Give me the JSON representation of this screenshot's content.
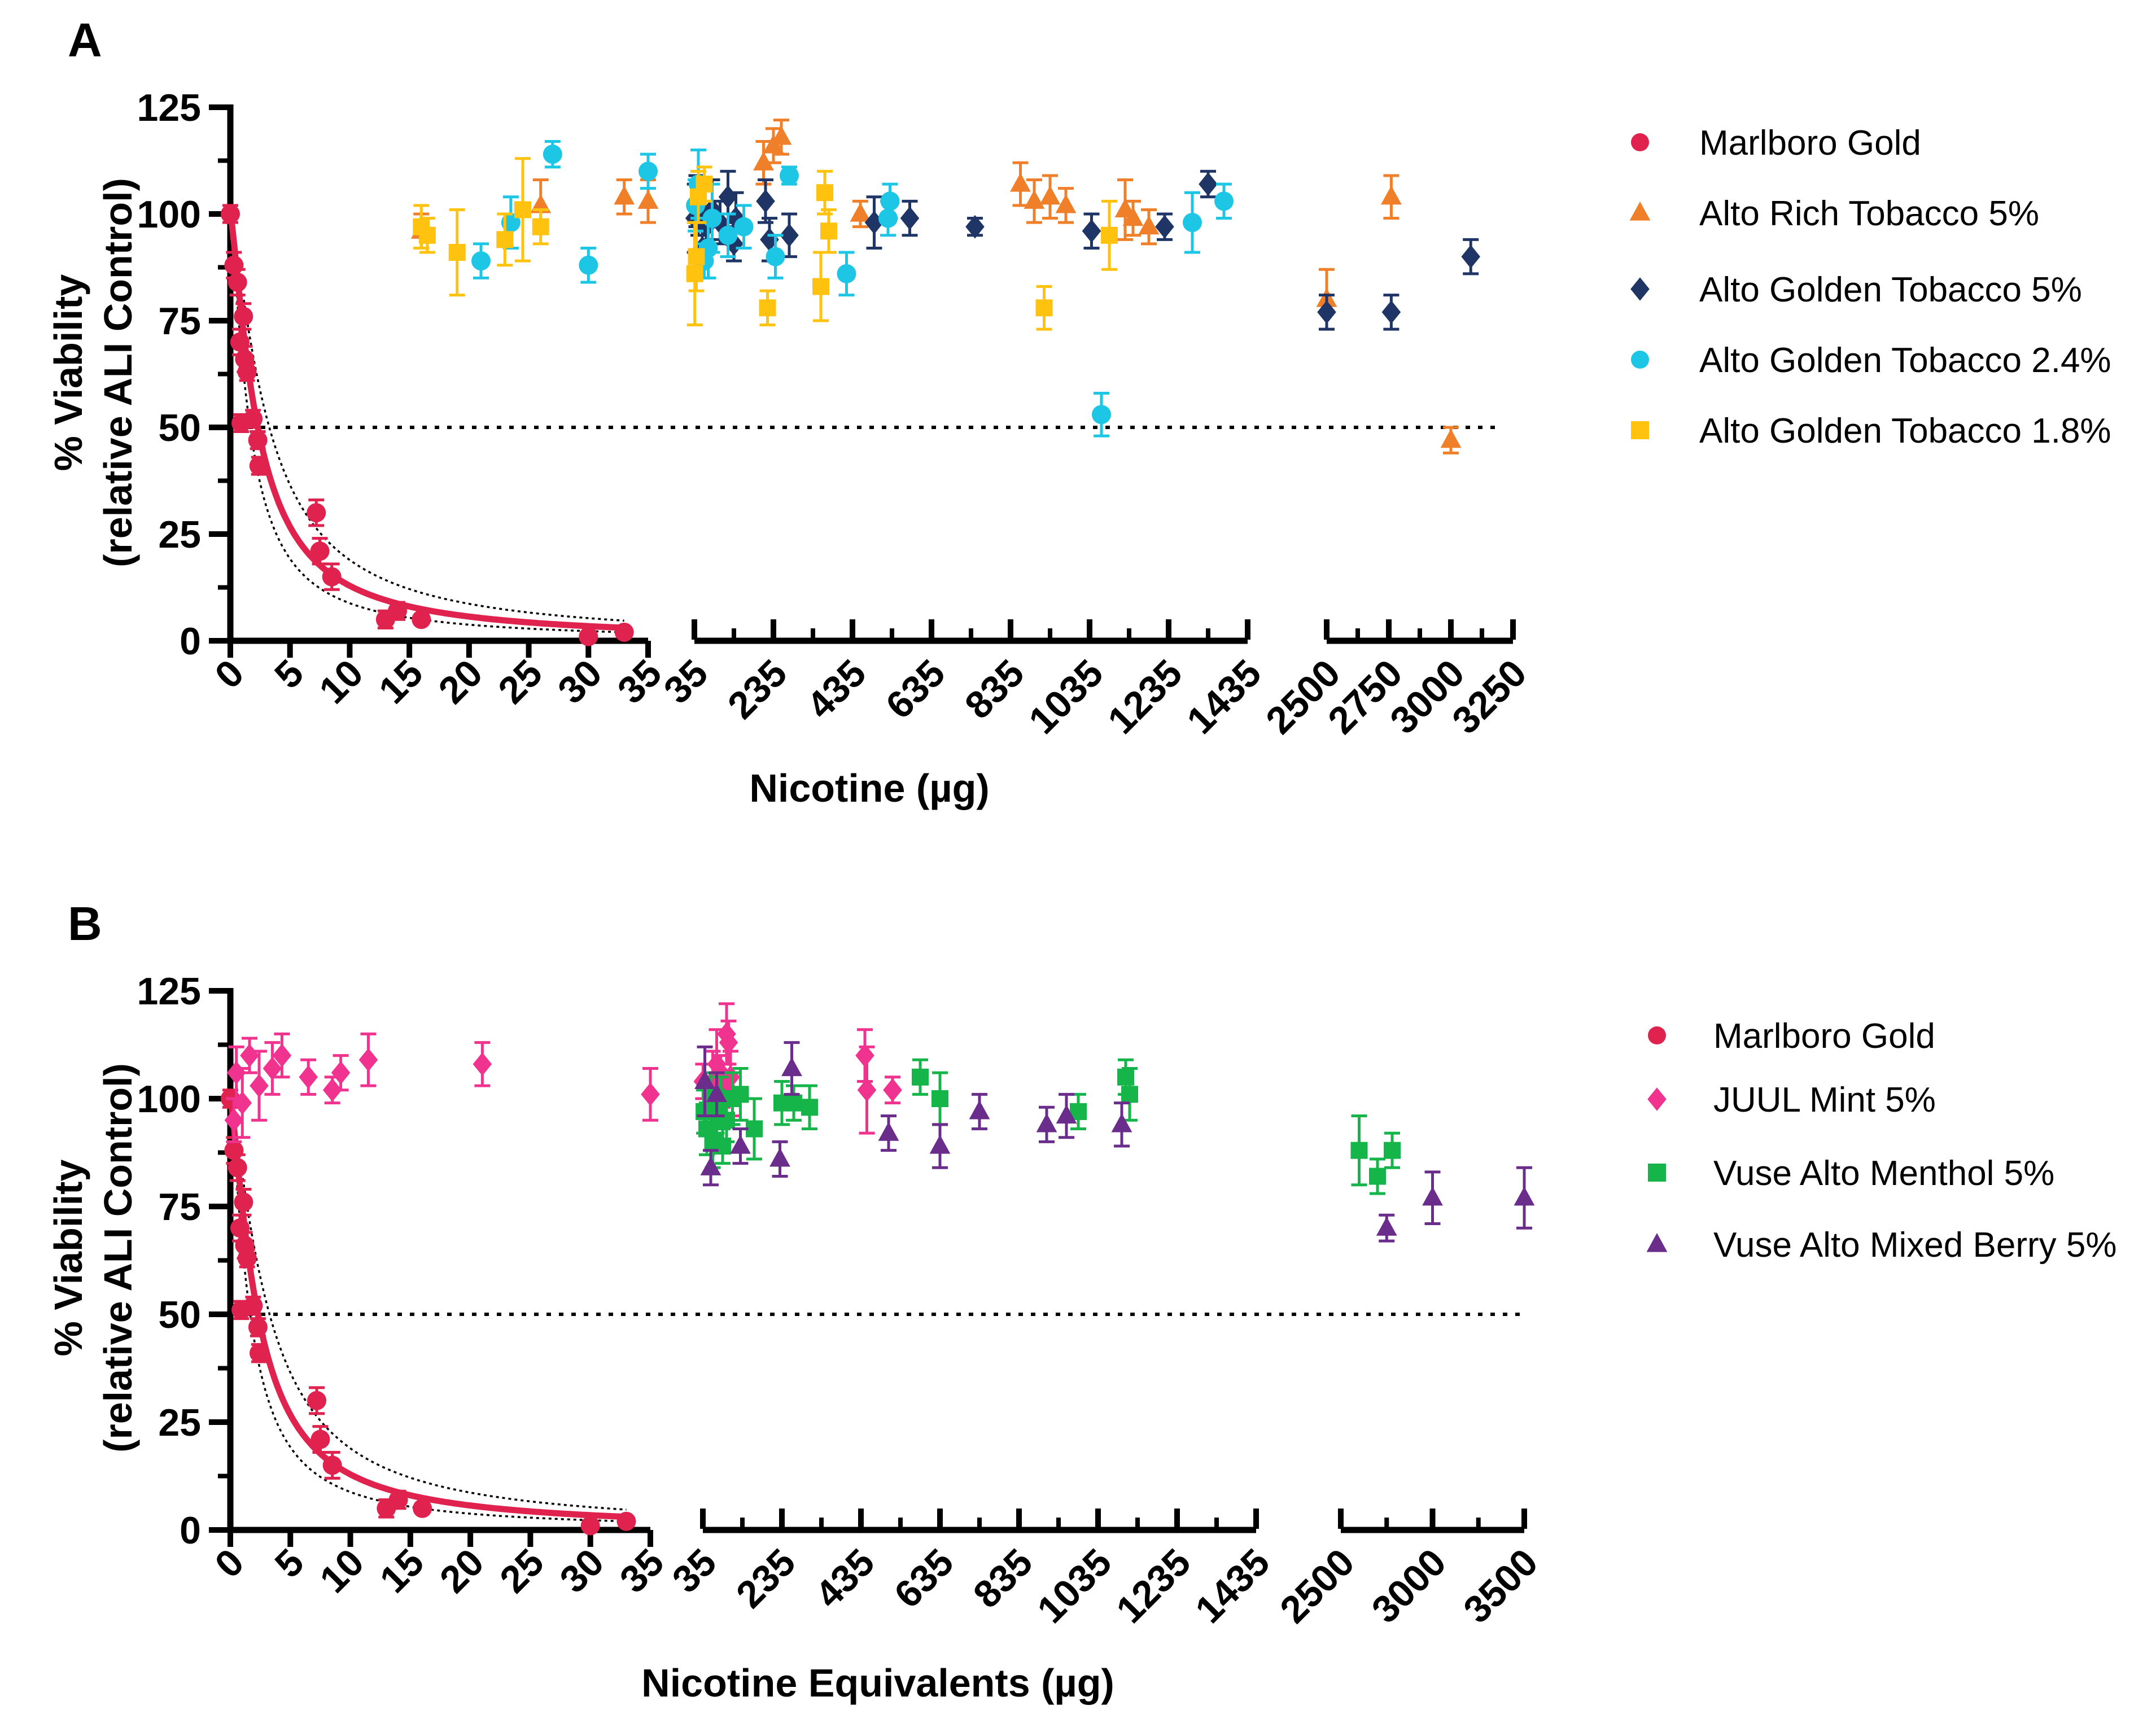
{
  "figure": {
    "panels": [
      {
        "letter": "A",
        "ylabel_line1": "% Viability",
        "ylabel_line2": "(relative ALI Control)",
        "xlabel": "Nicotine (µg)",
        "legend": [
          {
            "name": "Marlboro Gold",
            "marker": "circle",
            "color": "#e0234e"
          },
          {
            "name": "Alto Rich Tobacco 5%",
            "marker": "triangle",
            "color": "#f07f2a"
          },
          {
            "name": "Alto Golden Tobacco 5%",
            "marker": "diamond",
            "color": "#1f3566"
          },
          {
            "name": "Alto Golden Tobacco 2.4%",
            "marker": "circle",
            "color": "#1ec6e6"
          },
          {
            "name": "Alto Golden Tobacco 1.8%",
            "marker": "square",
            "color": "#ffc20e"
          }
        ]
      },
      {
        "letter": "B",
        "ylabel_line1": "% Viability",
        "ylabel_line2": "(relative ALI Control)",
        "xlabel": "Nicotine Equivalents (µg)",
        "legend": [
          {
            "name": "Marlboro Gold",
            "marker": "circle",
            "color": "#e0234e"
          },
          {
            "name": "JUUL Mint 5%",
            "marker": "diamond",
            "color": "#f0338f"
          },
          {
            "name": "Vuse Alto Menthol 5%",
            "marker": "square",
            "color": "#16b54a"
          },
          {
            "name": "Vuse Alto Mixed Berry 5%",
            "marker": "triangle",
            "color": "#6b2d8c"
          }
        ]
      }
    ]
  },
  "chart_data": [
    {
      "type": "scatter",
      "title": "A",
      "xlabel": "Nicotine (µg)",
      "ylabel": "% Viability (relative ALI Control)",
      "ylim": [
        0,
        125
      ],
      "yticks": [
        "0",
        "25",
        "50",
        "75",
        "100",
        "125"
      ],
      "reference_line_y": 50,
      "segments": [
        {
          "range": [
            0,
            35
          ],
          "ticks": [
            "0",
            "5",
            "10",
            "15",
            "20",
            "25",
            "30",
            "35"
          ]
        },
        {
          "range": [
            35,
            1435
          ],
          "ticks": [
            "35",
            "235",
            "435",
            "635",
            "835",
            "1035",
            "1235",
            "1435"
          ]
        },
        {
          "range": [
            2500,
            3250
          ],
          "ticks": [
            "2500",
            "2750",
            "3000",
            "3250"
          ]
        }
      ],
      "fit": {
        "series": "Marlboro Gold",
        "ic50": 2.3,
        "with_ci_band": true
      },
      "series": [
        {
          "name": "Marlboro Gold",
          "color": "#e0234e",
          "marker": "circle",
          "points": [
            [
              0,
              100,
              2
            ],
            [
              0.3,
              88,
              3
            ],
            [
              0.6,
              84,
              3
            ],
            [
              0.8,
              70,
              3
            ],
            [
              0.9,
              51,
              2
            ],
            [
              1.1,
              76,
              3
            ],
            [
              1.2,
              66,
              3
            ],
            [
              1.4,
              63,
              2
            ],
            [
              1.9,
              52,
              2
            ],
            [
              2.3,
              47,
              2
            ],
            [
              2.4,
              41,
              2
            ],
            [
              7.2,
              30,
              3
            ],
            [
              7.5,
              21,
              3
            ],
            [
              8.5,
              15,
              3
            ],
            [
              13,
              5,
              2
            ],
            [
              14,
              7,
              2
            ],
            [
              16,
              5,
              1
            ],
            [
              30,
              1,
              1
            ],
            [
              33,
              2,
              1
            ]
          ]
        },
        {
          "name": "Alto Rich Tobacco 5%",
          "color": "#f07f2a",
          "marker": "triangle",
          "points": [
            [
              16,
              96,
              4
            ],
            [
              26,
              102,
              6
            ],
            [
              33,
              104,
              4
            ],
            [
              35,
              103,
              5
            ],
            [
              210,
              112,
              5
            ],
            [
              235,
              116,
              4
            ],
            [
              255,
              118,
              4
            ],
            [
              455,
              100,
              3
            ],
            [
              860,
              107,
              5
            ],
            [
              895,
              103,
              5
            ],
            [
              935,
              104,
              5
            ],
            [
              975,
              102,
              4
            ],
            [
              1125,
              101,
              7
            ],
            [
              1145,
              99,
              4
            ],
            [
              1185,
              97,
              4
            ],
            [
              2500,
              80,
              7
            ],
            [
              2760,
              104,
              5
            ],
            [
              3000,
              47,
              3
            ]
          ]
        },
        {
          "name": "Alto Golden Tobacco 5%",
          "color": "#1f3566",
          "marker": "diamond",
          "points": [
            [
              36,
              99,
              8
            ],
            [
              40,
              103,
              6
            ],
            [
              45,
              100,
              5
            ],
            [
              55,
              92,
              4
            ],
            [
              65,
              97,
              5
            ],
            [
              80,
              101,
              7
            ],
            [
              100,
              98,
              5
            ],
            [
              120,
              104,
              6
            ],
            [
              135,
              93,
              4
            ],
            [
              140,
              99,
              6
            ],
            [
              215,
              103,
              5
            ],
            [
              225,
              94,
              5
            ],
            [
              275,
              95,
              5
            ],
            [
              490,
              98,
              6
            ],
            [
              580,
              99,
              4
            ],
            [
              745,
              97,
              2
            ],
            [
              1040,
              96,
              4
            ],
            [
              1225,
              97,
              3
            ],
            [
              1335,
              107,
              3
            ],
            [
              2500,
              77,
              4
            ],
            [
              2760,
              77,
              4
            ],
            [
              3080,
              90,
              4
            ]
          ]
        },
        {
          "name": "Alto Golden Tobacco 2.4%",
          "color": "#1ec6e6",
          "marker": "circle",
          "points": [
            [
              21,
              89,
              4
            ],
            [
              23.5,
              98,
              6
            ],
            [
              27,
              114,
              3
            ],
            [
              30,
              88,
              4
            ],
            [
              35,
              110,
              4
            ],
            [
              38,
              102,
              6
            ],
            [
              45,
              107,
              8
            ],
            [
              60,
              89,
              4
            ],
            [
              70,
              92,
              7
            ],
            [
              80,
              99,
              8
            ],
            [
              120,
              95,
              5
            ],
            [
              160,
              97,
              5
            ],
            [
              240,
              90,
              5
            ],
            [
              275,
              109,
              2
            ],
            [
              420,
              86,
              5
            ],
            [
              525,
              99,
              4
            ],
            [
              530,
              103,
              4
            ],
            [
              1065,
              53,
              5
            ],
            [
              1295,
              98,
              7
            ],
            [
              1375,
              103,
              4
            ]
          ]
        },
        {
          "name": "Alto Golden Tobacco 1.8%",
          "color": "#ffc20e",
          "marker": "square",
          "points": [
            [
              16,
              97,
              5
            ],
            [
              16.5,
              95,
              4
            ],
            [
              19,
              91,
              10
            ],
            [
              23,
              94,
              6
            ],
            [
              24.5,
              101,
              12
            ],
            [
              26,
              97,
              4
            ],
            [
              36,
              86,
              12
            ],
            [
              40,
              90,
              8
            ],
            [
              45,
              104,
              6
            ],
            [
              60,
              107,
              4
            ],
            [
              220,
              78,
              4
            ],
            [
              355,
              83,
              8
            ],
            [
              365,
              105,
              5
            ],
            [
              375,
              96,
              5
            ],
            [
              920,
              78,
              5
            ],
            [
              1085,
              95,
              8
            ]
          ]
        }
      ]
    },
    {
      "type": "scatter",
      "title": "B",
      "xlabel": "Nicotine Equivalents (µg)",
      "ylabel": "% Viability (relative ALI Control)",
      "ylim": [
        0,
        125
      ],
      "yticks": [
        "0",
        "25",
        "50",
        "75",
        "100",
        "125"
      ],
      "reference_line_y": 50,
      "segments": [
        {
          "range": [
            0,
            35
          ],
          "ticks": [
            "0",
            "5",
            "10",
            "15",
            "20",
            "25",
            "30",
            "35"
          ]
        },
        {
          "range": [
            35,
            1435
          ],
          "ticks": [
            "35",
            "235",
            "435",
            "635",
            "835",
            "1035",
            "1235",
            "1435"
          ]
        },
        {
          "range": [
            2500,
            3500
          ],
          "ticks": [
            "2500",
            "3000",
            "3500"
          ]
        }
      ],
      "fit": {
        "series": "Marlboro Gold",
        "ic50": 2.3,
        "with_ci_band": true
      },
      "series": [
        {
          "name": "Marlboro Gold",
          "color": "#e0234e",
          "marker": "circle",
          "points": [
            [
              0,
              100,
              2
            ],
            [
              0.3,
              88,
              3
            ],
            [
              0.6,
              84,
              3
            ],
            [
              0.8,
              70,
              3
            ],
            [
              0.9,
              51,
              2
            ],
            [
              1.1,
              76,
              3
            ],
            [
              1.2,
              66,
              3
            ],
            [
              1.4,
              63,
              2
            ],
            [
              1.9,
              52,
              2
            ],
            [
              2.3,
              47,
              2
            ],
            [
              2.4,
              41,
              2
            ],
            [
              7.2,
              30,
              3
            ],
            [
              7.5,
              21,
              3
            ],
            [
              8.5,
              15,
              3
            ],
            [
              13,
              5,
              2
            ],
            [
              14,
              7,
              2
            ],
            [
              16,
              5,
              1
            ],
            [
              30,
              1,
              1
            ],
            [
              33,
              2,
              1
            ]
          ]
        },
        {
          "name": "JUUL Mint 5%",
          "color": "#f0338f",
          "marker": "diamond",
          "points": [
            [
              0.3,
              95,
              5
            ],
            [
              0.5,
              106,
              6
            ],
            [
              1,
              99,
              8
            ],
            [
              1.6,
              110,
              4
            ],
            [
              2.4,
              103,
              8
            ],
            [
              3.5,
              107,
              6
            ],
            [
              4.3,
              110,
              5
            ],
            [
              6.5,
              105,
              4
            ],
            [
              8.5,
              102,
              3
            ],
            [
              9.2,
              106,
              4
            ],
            [
              11.5,
              109,
              6
            ],
            [
              21,
              108,
              5
            ],
            [
              35,
              101,
              6
            ],
            [
              35.5,
              104,
              4
            ],
            [
              60,
              104,
              7
            ],
            [
              70,
              108,
              8
            ],
            [
              80,
              106,
              4
            ],
            [
              85,
              103,
              5
            ],
            [
              95,
              115,
              7
            ],
            [
              100,
              113,
              5
            ],
            [
              105,
              105,
              6
            ],
            [
              110,
              101,
              5
            ],
            [
              445,
              110,
              6
            ],
            [
              450,
              102,
              10
            ],
            [
              515,
              102,
              3
            ]
          ]
        },
        {
          "name": "Vuse Alto Menthol 5%",
          "color": "#16b54a",
          "marker": "square",
          "points": [
            [
              38,
              97,
              5
            ],
            [
              45,
              93,
              6
            ],
            [
              55,
              100,
              6
            ],
            [
              60,
              90,
              6
            ],
            [
              70,
              97,
              5
            ],
            [
              80,
              100,
              5
            ],
            [
              85,
              89,
              4
            ],
            [
              95,
              95,
              5
            ],
            [
              110,
              100,
              6
            ],
            [
              130,
              101,
              6
            ],
            [
              165,
              93,
              7
            ],
            [
              235,
              99,
              5
            ],
            [
              265,
              99,
              4
            ],
            [
              305,
              98,
              5
            ],
            [
              585,
              105,
              4
            ],
            [
              635,
              100,
              6
            ],
            [
              985,
              97,
              4
            ],
            [
              1105,
              105,
              4
            ],
            [
              1115,
              101,
              6
            ],
            [
              2600,
              88,
              8
            ],
            [
              2700,
              82,
              4
            ],
            [
              2780,
              88,
              4
            ]
          ]
        },
        {
          "name": "Vuse Alto Mixed Berry 5%",
          "color": "#6b2d8c",
          "marker": "triangle",
          "points": [
            [
              40,
              104,
              8
            ],
            [
              55,
              84,
              4
            ],
            [
              70,
              101,
              5
            ],
            [
              130,
              89,
              4
            ],
            [
              230,
              86,
              4
            ],
            [
              260,
              107,
              6
            ],
            [
              505,
              92,
              4
            ],
            [
              635,
              89,
              5
            ],
            [
              735,
              97,
              4
            ],
            [
              905,
              94,
              4
            ],
            [
              955,
              96,
              5
            ],
            [
              1095,
              94,
              5
            ],
            [
              2750,
              70,
              3
            ],
            [
              3000,
              77,
              6
            ],
            [
              3500,
              77,
              7
            ]
          ]
        }
      ]
    }
  ]
}
